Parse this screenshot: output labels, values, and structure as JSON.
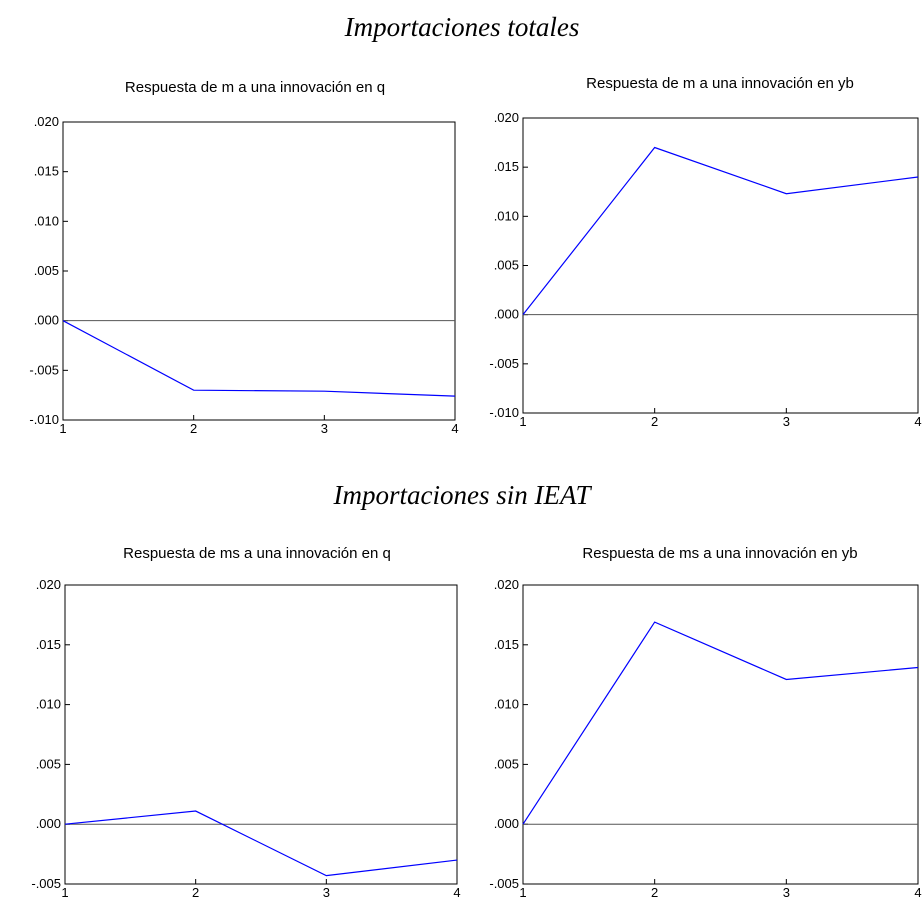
{
  "headings": [
    "Importaciones totales",
    "Importaciones sin IEAT"
  ],
  "chart_data": [
    {
      "type": "line",
      "title": "Respuesta de m a una innovación en q",
      "x": [
        1,
        2,
        3,
        4
      ],
      "xlim": [
        1,
        4
      ],
      "xticks": [
        1,
        2,
        3,
        4
      ],
      "series": [
        {
          "color": "#0000ff",
          "values": [
            0,
            -0.007,
            -0.0071,
            -0.0076
          ]
        }
      ],
      "ylim": [
        -0.01,
        0.02
      ],
      "yticks": [
        {
          "value": -0.01,
          "label": "-.010"
        },
        {
          "value": -0.005,
          "label": "-.005"
        },
        {
          "value": 0,
          "label": ".000"
        },
        {
          "value": 0.005,
          "label": ".005"
        },
        {
          "value": 0.01,
          "label": ".010"
        },
        {
          "value": 0.015,
          "label": ".015"
        },
        {
          "value": 0.02,
          "label": ".020"
        }
      ],
      "zero_line": true
    },
    {
      "type": "line",
      "title": "Respuesta de m a una innovación en yb",
      "x": [
        1,
        2,
        3,
        4
      ],
      "xlim": [
        1,
        4
      ],
      "xticks": [
        1,
        2,
        3,
        4
      ],
      "series": [
        {
          "color": "#0000ff",
          "values": [
            0,
            0.017,
            0.0123,
            0.014
          ]
        }
      ],
      "ylim": [
        -0.01,
        0.02
      ],
      "yticks": [
        {
          "value": -0.01,
          "label": "-.010"
        },
        {
          "value": -0.005,
          "label": "-.005"
        },
        {
          "value": 0,
          "label": ".000"
        },
        {
          "value": 0.005,
          "label": ".005"
        },
        {
          "value": 0.01,
          "label": ".010"
        },
        {
          "value": 0.015,
          "label": ".015"
        },
        {
          "value": 0.02,
          "label": ".020"
        }
      ],
      "zero_line": true
    },
    {
      "type": "line",
      "title": "Respuesta de ms a una innovación en q",
      "x": [
        1,
        2,
        3,
        4
      ],
      "xlim": [
        1,
        4
      ],
      "xticks": [
        1,
        2,
        3,
        4
      ],
      "series": [
        {
          "color": "#0000ff",
          "values": [
            0,
            0.0011,
            -0.0043,
            -0.003
          ]
        }
      ],
      "ylim": [
        -0.005,
        0.02
      ],
      "yticks": [
        {
          "value": -0.005,
          "label": "-.005"
        },
        {
          "value": 0,
          "label": ".000"
        },
        {
          "value": 0.005,
          "label": ".005"
        },
        {
          "value": 0.01,
          "label": ".010"
        },
        {
          "value": 0.015,
          "label": ".015"
        },
        {
          "value": 0.02,
          "label": ".020"
        }
      ],
      "zero_line": true
    },
    {
      "type": "line",
      "title": "Respuesta de ms a una innovación en yb",
      "x": [
        1,
        2,
        3,
        4
      ],
      "xlim": [
        1,
        4
      ],
      "xticks": [
        1,
        2,
        3,
        4
      ],
      "series": [
        {
          "color": "#0000ff",
          "values": [
            0,
            0.0169,
            0.0121,
            0.0131
          ]
        }
      ],
      "ylim": [
        -0.005,
        0.02
      ],
      "yticks": [
        {
          "value": -0.005,
          "label": "-.005"
        },
        {
          "value": 0,
          "label": ".000"
        },
        {
          "value": 0.005,
          "label": ".005"
        },
        {
          "value": 0.01,
          "label": ".010"
        },
        {
          "value": 0.015,
          "label": ".015"
        },
        {
          "value": 0.02,
          "label": ".020"
        }
      ],
      "zero_line": true
    }
  ]
}
